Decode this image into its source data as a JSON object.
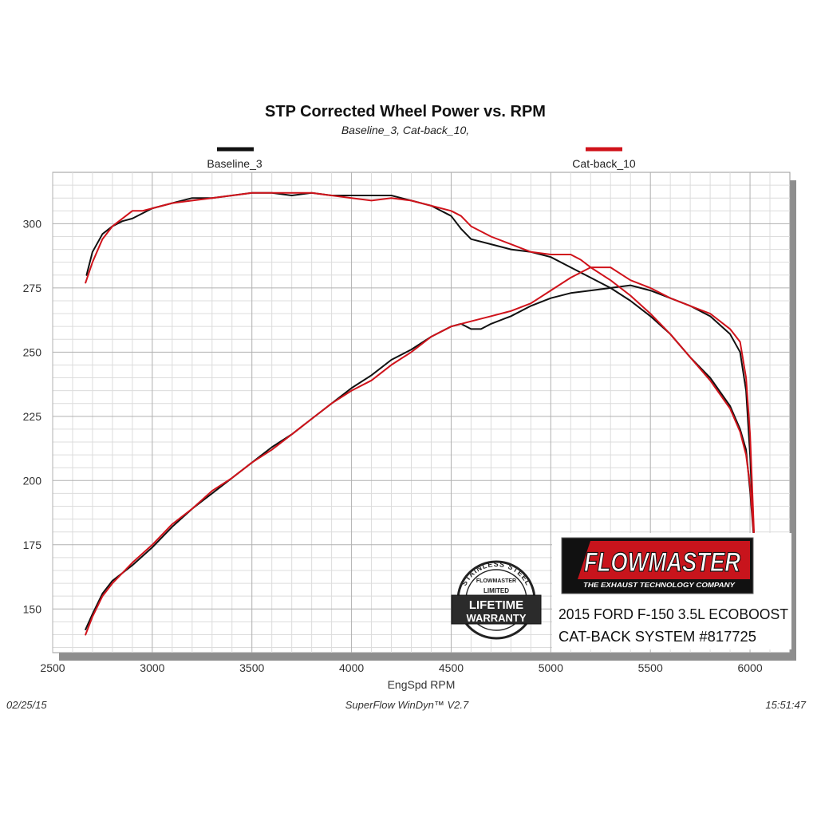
{
  "chart_data": {
    "type": "line",
    "title": "STP Corrected Wheel Power vs. RPM",
    "subtitle": "Baseline_3, Cat-back_10,",
    "xlabel": "EngSpd RPM",
    "ylabel": "",
    "xlim": [
      2500,
      6200
    ],
    "ylim": [
      133,
      320
    ],
    "xticks": [
      2500,
      3000,
      3500,
      4000,
      4500,
      5000,
      5500,
      6000
    ],
    "yticks": [
      150,
      175,
      200,
      225,
      250,
      275,
      300
    ],
    "grid": true,
    "legend_position": "top",
    "series": [
      {
        "name": "Baseline_3",
        "color": "#111111",
        "role": "torque",
        "points": [
          [
            2670,
            280
          ],
          [
            2700,
            289
          ],
          [
            2750,
            296
          ],
          [
            2800,
            299
          ],
          [
            2850,
            301
          ],
          [
            2900,
            302
          ],
          [
            2950,
            304
          ],
          [
            3000,
            306
          ],
          [
            3100,
            308
          ],
          [
            3200,
            310
          ],
          [
            3300,
            310
          ],
          [
            3400,
            311
          ],
          [
            3500,
            312
          ],
          [
            3600,
            312
          ],
          [
            3700,
            311
          ],
          [
            3800,
            312
          ],
          [
            3900,
            311
          ],
          [
            4000,
            311
          ],
          [
            4100,
            311
          ],
          [
            4200,
            311
          ],
          [
            4300,
            309
          ],
          [
            4400,
            307
          ],
          [
            4500,
            303
          ],
          [
            4550,
            298
          ],
          [
            4600,
            294
          ],
          [
            4700,
            292
          ],
          [
            4800,
            290
          ],
          [
            4900,
            289
          ],
          [
            5000,
            287
          ],
          [
            5100,
            283
          ],
          [
            5200,
            279
          ],
          [
            5300,
            275
          ],
          [
            5400,
            270
          ],
          [
            5500,
            264
          ],
          [
            5600,
            257
          ],
          [
            5700,
            248
          ],
          [
            5800,
            240
          ],
          [
            5900,
            229
          ],
          [
            5950,
            220
          ],
          [
            5980,
            212
          ],
          [
            6000,
            196
          ],
          [
            6020,
            177
          ]
        ]
      },
      {
        "name": "Cat-back_10",
        "color": "#d0131b",
        "role": "torque",
        "points": [
          [
            2665,
            277
          ],
          [
            2700,
            285
          ],
          [
            2750,
            294
          ],
          [
            2800,
            299
          ],
          [
            2850,
            302
          ],
          [
            2900,
            305
          ],
          [
            2950,
            305
          ],
          [
            3000,
            306
          ],
          [
            3100,
            308
          ],
          [
            3200,
            309
          ],
          [
            3300,
            310
          ],
          [
            3400,
            311
          ],
          [
            3500,
            312
          ],
          [
            3600,
            312
          ],
          [
            3700,
            312
          ],
          [
            3800,
            312
          ],
          [
            3900,
            311
          ],
          [
            4000,
            310
          ],
          [
            4100,
            309
          ],
          [
            4200,
            310
          ],
          [
            4300,
            309
          ],
          [
            4400,
            307
          ],
          [
            4500,
            305
          ],
          [
            4550,
            303
          ],
          [
            4600,
            299
          ],
          [
            4700,
            295
          ],
          [
            4800,
            292
          ],
          [
            4900,
            289
          ],
          [
            5000,
            288
          ],
          [
            5100,
            288
          ],
          [
            5150,
            286
          ],
          [
            5200,
            283
          ],
          [
            5300,
            278
          ],
          [
            5400,
            272
          ],
          [
            5500,
            265
          ],
          [
            5600,
            257
          ],
          [
            5700,
            248
          ],
          [
            5800,
            239
          ],
          [
            5900,
            228
          ],
          [
            5950,
            219
          ],
          [
            5980,
            210
          ],
          [
            6000,
            198
          ],
          [
            6020,
            178
          ]
        ]
      },
      {
        "name": "Baseline_3",
        "color": "#111111",
        "role": "horsepower",
        "points": [
          [
            2665,
            142
          ],
          [
            2700,
            148
          ],
          [
            2750,
            156
          ],
          [
            2800,
            161
          ],
          [
            2900,
            167
          ],
          [
            3000,
            174
          ],
          [
            3100,
            182
          ],
          [
            3200,
            189
          ],
          [
            3300,
            195
          ],
          [
            3400,
            201
          ],
          [
            3500,
            207
          ],
          [
            3600,
            213
          ],
          [
            3700,
            218
          ],
          [
            3800,
            224
          ],
          [
            3900,
            230
          ],
          [
            4000,
            236
          ],
          [
            4100,
            241
          ],
          [
            4200,
            247
          ],
          [
            4300,
            251
          ],
          [
            4400,
            256
          ],
          [
            4500,
            260
          ],
          [
            4550,
            261
          ],
          [
            4600,
            259
          ],
          [
            4650,
            259
          ],
          [
            4700,
            261
          ],
          [
            4800,
            264
          ],
          [
            4900,
            268
          ],
          [
            5000,
            271
          ],
          [
            5100,
            273
          ],
          [
            5200,
            274
          ],
          [
            5300,
            275
          ],
          [
            5400,
            276
          ],
          [
            5500,
            274
          ],
          [
            5600,
            271
          ],
          [
            5700,
            268
          ],
          [
            5800,
            264
          ],
          [
            5900,
            257
          ],
          [
            5950,
            250
          ],
          [
            5980,
            235
          ],
          [
            6000,
            210
          ],
          [
            6020,
            178
          ]
        ]
      },
      {
        "name": "Cat-back_10",
        "color": "#d0131b",
        "role": "horsepower",
        "points": [
          [
            2665,
            140
          ],
          [
            2700,
            147
          ],
          [
            2750,
            155
          ],
          [
            2800,
            160
          ],
          [
            2900,
            168
          ],
          [
            3000,
            175
          ],
          [
            3100,
            183
          ],
          [
            3200,
            189
          ],
          [
            3300,
            196
          ],
          [
            3400,
            201
          ],
          [
            3500,
            207
          ],
          [
            3600,
            212
          ],
          [
            3700,
            218
          ],
          [
            3800,
            224
          ],
          [
            3900,
            230
          ],
          [
            4000,
            235
          ],
          [
            4100,
            239
          ],
          [
            4200,
            245
          ],
          [
            4300,
            250
          ],
          [
            4400,
            256
          ],
          [
            4500,
            260
          ],
          [
            4600,
            262
          ],
          [
            4700,
            264
          ],
          [
            4800,
            266
          ],
          [
            4900,
            269
          ],
          [
            5000,
            274
          ],
          [
            5100,
            279
          ],
          [
            5200,
            283
          ],
          [
            5300,
            283
          ],
          [
            5400,
            278
          ],
          [
            5500,
            275
          ],
          [
            5600,
            271
          ],
          [
            5700,
            268
          ],
          [
            5800,
            265
          ],
          [
            5900,
            259
          ],
          [
            5950,
            254
          ],
          [
            5980,
            240
          ],
          [
            6000,
            218
          ],
          [
            6020,
            180
          ]
        ]
      }
    ]
  },
  "footer": {
    "date": "02/25/15",
    "software": "SuperFlow WinDyn™ V2.7",
    "time": "15:51:47"
  },
  "brand": {
    "logo_text": "FLOWMASTER",
    "tagline": "THE EXHAUST TECHNOLOGY COMPANY",
    "vehicle_line": "2015 FORD F-150 3.5L ECOBOOST",
    "system_line": "CAT-BACK SYSTEM #817725"
  },
  "warranty_badge": {
    "ring_text": "STAINLESS STEEL",
    "small_brand": "FLOWMASTER",
    "limited": "LIMITED",
    "line1": "LIFETIME",
    "line2": "WARRANTY"
  }
}
